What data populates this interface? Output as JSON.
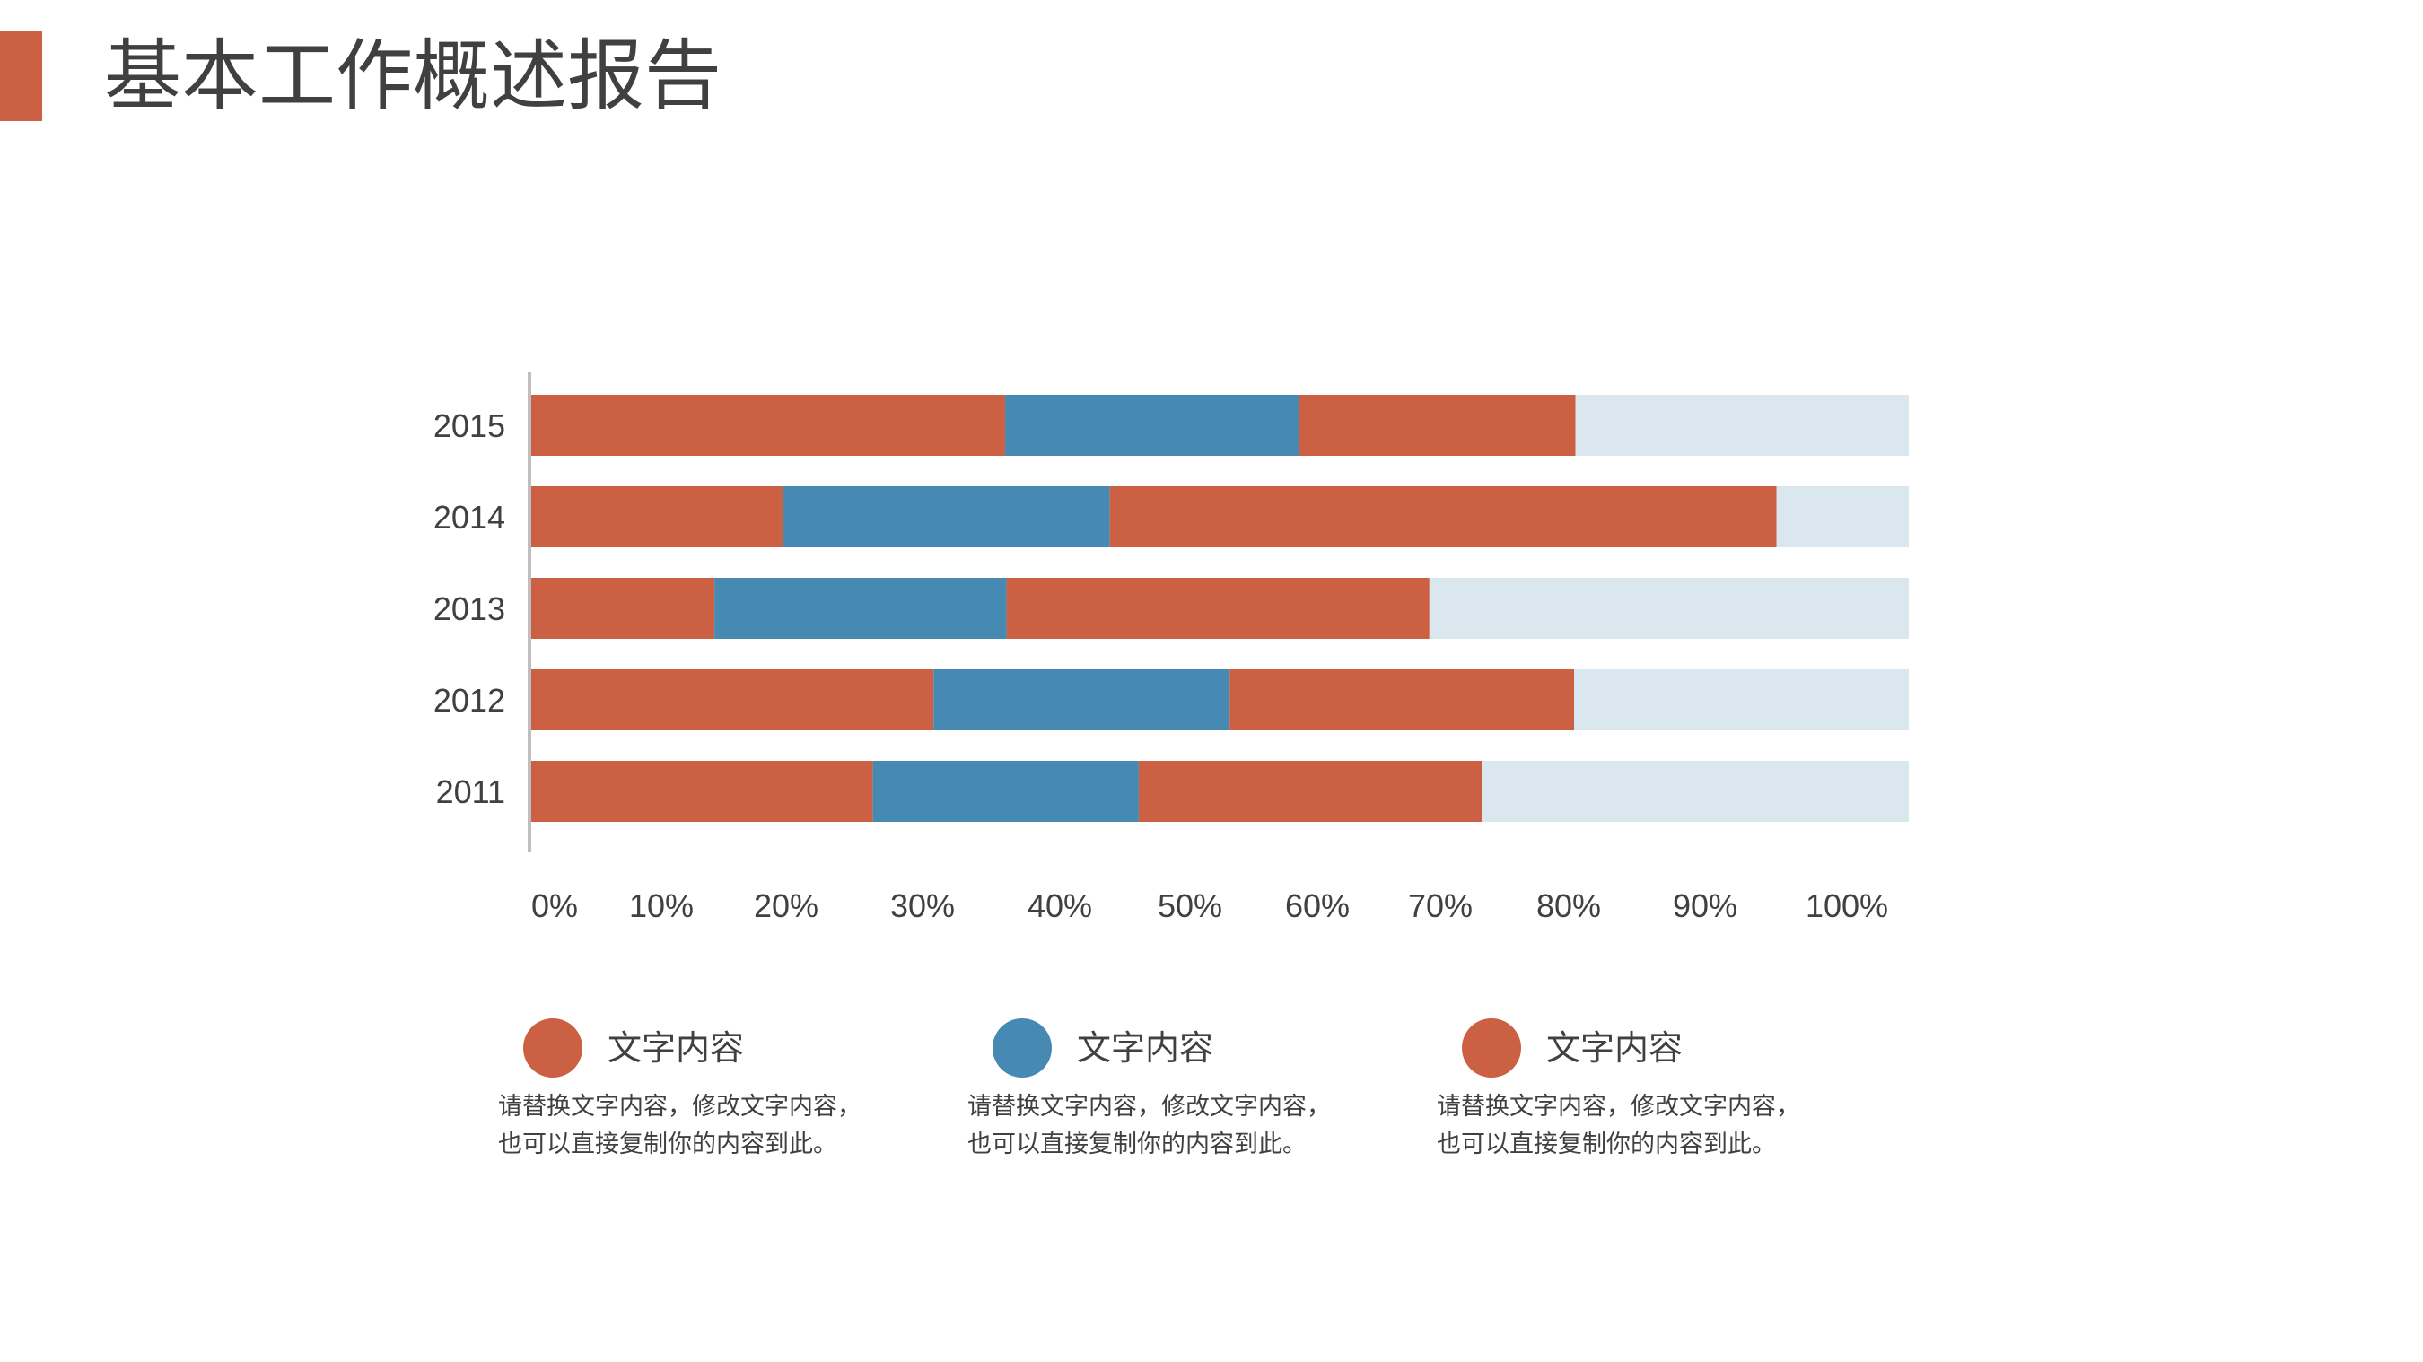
{
  "header": {
    "title": "基本工作概述报告",
    "accent_color": "#CB6043"
  },
  "chart_data": {
    "type": "bar",
    "orientation": "horizontal",
    "stacked": true,
    "categories": [
      "2015",
      "2014",
      "2013",
      "2012",
      "2011"
    ],
    "series": [
      {
        "values": [
          34.4,
          18.3,
          13.3,
          29.2,
          24.8
        ],
        "color": "#CB6043"
      },
      {
        "values": [
          21.3,
          23.7,
          21.2,
          21.5,
          19.3
        ],
        "color": "#468AB4"
      },
      {
        "values": [
          20.1,
          48.4,
          30.7,
          25.0,
          24.9
        ],
        "color": "#CB6043"
      },
      {
        "values": [
          24.2,
          9.6,
          34.8,
          24.3,
          31.0
        ],
        "color": "#DAE7EF"
      }
    ],
    "xlim": [
      0,
      100
    ],
    "x_tick_labels": [
      "0%",
      "10%",
      "20%",
      "30%",
      "40%",
      "50%",
      "60%",
      "70%",
      "80%",
      "90%",
      "100%"
    ],
    "grid": false,
    "title": "",
    "xlabel": "",
    "ylabel": ""
  },
  "legend": [
    {
      "label": "文字内容",
      "color": "#CB6043",
      "desc_line1": "请替换文字内容，修改文字内容，",
      "desc_line2": "也可以直接复制你的内容到此。"
    },
    {
      "label": "文字内容",
      "color": "#468AB4",
      "desc_line1": "请替换文字内容，修改文字内容，",
      "desc_line2": "也可以直接复制你的内容到此。"
    },
    {
      "label": "文字内容",
      "color": "#CB6043",
      "desc_line1": "请替换文字内容，修改文字内容，",
      "desc_line2": "也可以直接复制你的内容到此。"
    }
  ]
}
